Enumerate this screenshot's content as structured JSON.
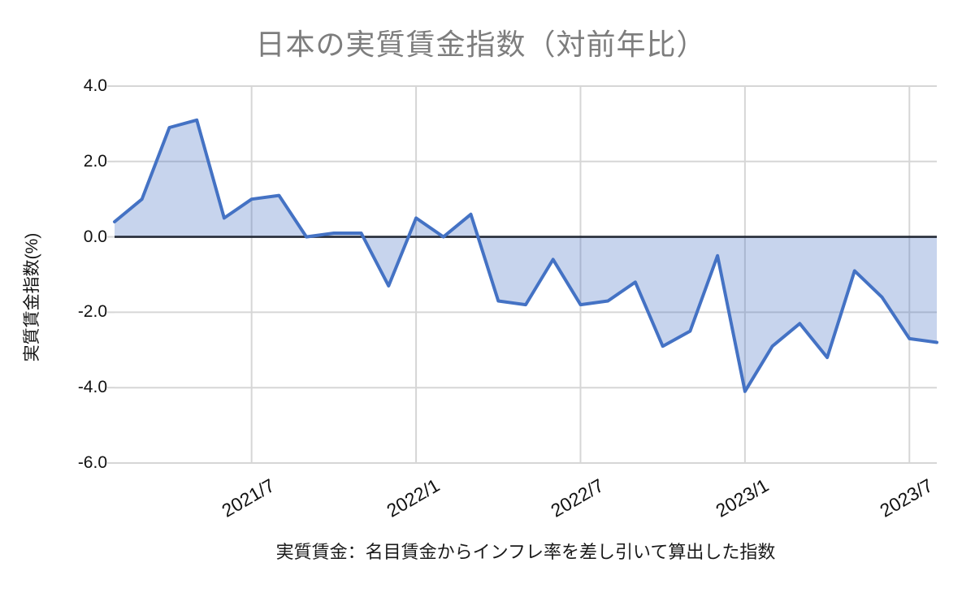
{
  "figure": {
    "footnote": "実質賃金：名目賃金からインフレ率を差し引いて算出した指数"
  },
  "chart_data": {
    "type": "area",
    "title": "日本の実質賃金指数（対前年比）",
    "ylabel": "実質賃金指数(%)",
    "xlabel": "",
    "ylim": [
      -6.0,
      4.0
    ],
    "baseline": 0,
    "grid": true,
    "legend": "none",
    "x": [
      "2021/2",
      "2021/3",
      "2021/4",
      "2021/5",
      "2021/6",
      "2021/7",
      "2021/8",
      "2021/9",
      "2021/10",
      "2021/11",
      "2021/12",
      "2022/1",
      "2022/2",
      "2022/3",
      "2022/4",
      "2022/5",
      "2022/6",
      "2022/7",
      "2022/8",
      "2022/9",
      "2022/10",
      "2022/11",
      "2022/12",
      "2023/1",
      "2023/2",
      "2023/3",
      "2023/4",
      "2023/5",
      "2023/6",
      "2023/7",
      "2023/8"
    ],
    "values": [
      0.4,
      1.0,
      2.9,
      3.1,
      0.5,
      1.0,
      1.1,
      0.0,
      0.1,
      0.1,
      -1.3,
      0.5,
      0.0,
      0.6,
      -1.7,
      -1.8,
      -0.6,
      -1.8,
      -1.7,
      -1.2,
      -2.9,
      -2.5,
      -0.5,
      -4.1,
      -2.9,
      -2.3,
      -3.2,
      -0.9,
      -1.6,
      -2.7,
      -2.8
    ],
    "yticks": [
      {
        "label": "4.0",
        "value": 4
      },
      {
        "label": "2.0",
        "value": 2
      },
      {
        "label": "0.0",
        "value": 0
      },
      {
        "label": "-2.0",
        "value": -2
      },
      {
        "label": "-4.0",
        "value": -4
      },
      {
        "label": "-6.0",
        "value": -6
      }
    ],
    "xticks": [
      {
        "label": "2021/7",
        "index": 5
      },
      {
        "label": "2022/1",
        "index": 11
      },
      {
        "label": "2022/7",
        "index": 17
      },
      {
        "label": "2023/1",
        "index": 23
      },
      {
        "label": "2023/7",
        "index": 29
      }
    ],
    "colors": {
      "line": "#4472C4",
      "fill": "#4472C4",
      "fill_opacity": 0.3,
      "zero_line": "#242a36",
      "grid": "#d6d6d6",
      "title": "#7d7d7d",
      "tick_text": "#111111"
    }
  }
}
